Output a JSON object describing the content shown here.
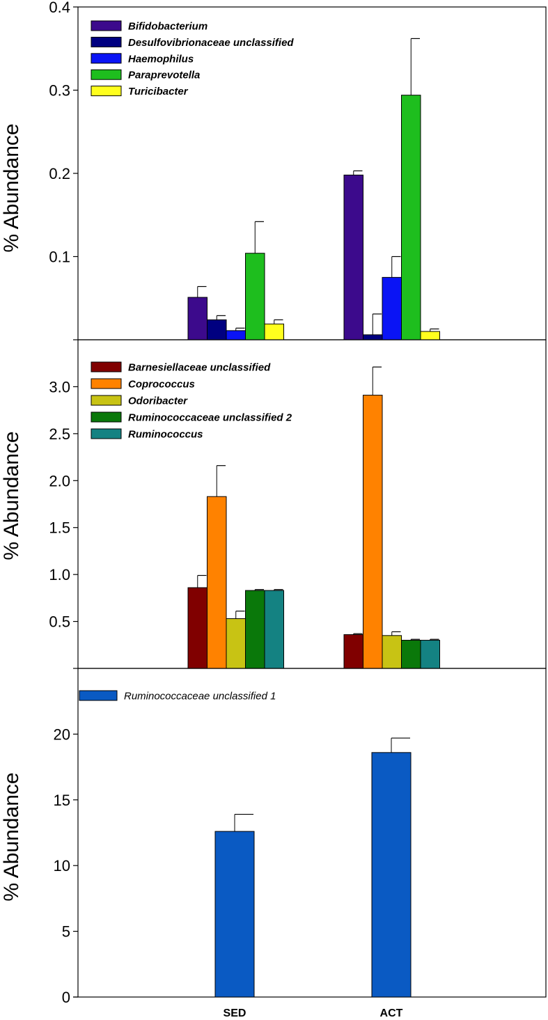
{
  "chart_data": [
    {
      "type": "bar",
      "ylabel": "% Abundance",
      "ylim": [
        0,
        0.4
      ],
      "yticks": [
        0.1,
        0.2,
        0.3,
        0.4
      ],
      "ytick_labels": [
        "0.1",
        "0.2",
        "0.3",
        "0.4"
      ],
      "legend_bold": true,
      "categories": [
        "SED",
        "ACT"
      ],
      "series": [
        {
          "name": "Bifidobacterium",
          "color": "#3c0a8c",
          "values": [
            0.051,
            0.198
          ],
          "errors": [
            0.013,
            0.005
          ]
        },
        {
          "name": "Desulfovibrionaceae unclassified",
          "color": "#000080",
          "values": [
            0.024,
            0.006
          ],
          "errors": [
            0.005,
            0.025
          ]
        },
        {
          "name": "Haemophilus",
          "color": "#0a14f5",
          "values": [
            0.011,
            0.075
          ],
          "errors": [
            0.003,
            0.025
          ]
        },
        {
          "name": "Paraprevotella",
          "color": "#1ebe1e",
          "values": [
            0.104,
            0.294
          ],
          "errors": [
            0.038,
            0.068
          ]
        },
        {
          "name": "Turicibacter",
          "color": "#ffff1e",
          "values": [
            0.019,
            0.01
          ],
          "errors": [
            0.005,
            0.003
          ]
        }
      ]
    },
    {
      "type": "bar",
      "ylabel": "% Abundance",
      "ylim": [
        0,
        3.5
      ],
      "yticks": [
        0.5,
        1.0,
        1.5,
        2.0,
        2.5,
        3.0
      ],
      "ytick_labels": [
        "0.5",
        "1.0",
        "1.5",
        "2.0",
        "2.5",
        "3.0"
      ],
      "legend_bold": true,
      "categories": [
        "SED",
        "ACT"
      ],
      "series": [
        {
          "name": "Barnesiellaceae unclassified",
          "color": "#800000",
          "values": [
            0.86,
            0.36
          ],
          "errors": [
            0.13,
            0.01
          ]
        },
        {
          "name": "Coprococcus",
          "color": "#ff8200",
          "values": [
            1.83,
            2.91
          ],
          "errors": [
            0.33,
            0.3
          ]
        },
        {
          "name": "Odoribacter",
          "color": "#c8c314",
          "values": [
            0.53,
            0.35
          ],
          "errors": [
            0.08,
            0.04
          ]
        },
        {
          "name": "Ruminococcaceae unclassified 2",
          "color": "#0a780a",
          "values": [
            0.83,
            0.3
          ],
          "errors": [
            0.01,
            0.01
          ]
        },
        {
          "name": "Ruminococcus",
          "color": "#148282",
          "values": [
            0.83,
            0.3
          ],
          "errors": [
            0.01,
            0.01
          ]
        }
      ]
    },
    {
      "type": "bar",
      "ylabel": "% Abundance",
      "ylim": [
        0,
        25
      ],
      "yticks": [
        0,
        5,
        10,
        15,
        20
      ],
      "ytick_labels": [
        "0",
        "5",
        "10",
        "15",
        "20"
      ],
      "legend_bold": false,
      "categories": [
        "SED",
        "ACT"
      ],
      "category_labels": [
        "SED",
        "ACT"
      ],
      "series": [
        {
          "name": "Ruminococcaceae unclassified 1",
          "color": "#0a5ac3",
          "values": [
            12.6,
            18.6
          ],
          "errors": [
            1.3,
            1.1
          ]
        }
      ]
    }
  ]
}
